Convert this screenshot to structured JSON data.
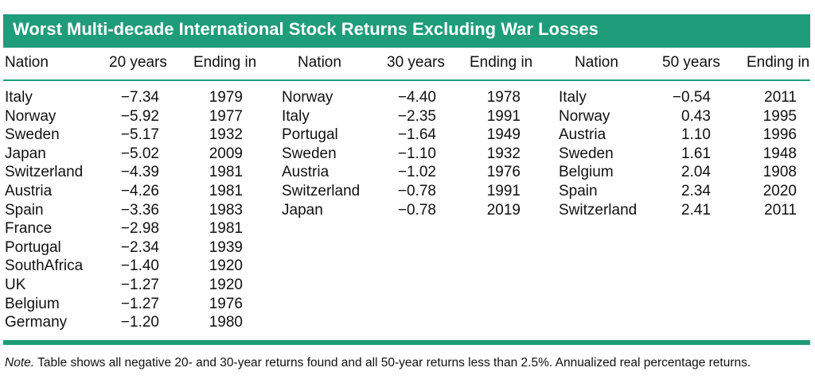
{
  "title": "Worst Multi-decade International Stock Returns Excluding War Losses",
  "headers": {
    "nation": "Nation",
    "years20": "20 years",
    "years30": "30 years",
    "years50": "50 years",
    "ending": "Ending in"
  },
  "table20": [
    {
      "nation": "Italy",
      "value": "−7.34",
      "ending": "1979"
    },
    {
      "nation": "Norway",
      "value": "−5.92",
      "ending": "1977"
    },
    {
      "nation": "Sweden",
      "value": "−5.17",
      "ending": "1932"
    },
    {
      "nation": "Japan",
      "value": "−5.02",
      "ending": "2009"
    },
    {
      "nation": "Switzerland",
      "value": "−4.39",
      "ending": "1981"
    },
    {
      "nation": "Austria",
      "value": "−4.26",
      "ending": "1981"
    },
    {
      "nation": "Spain",
      "value": "−3.36",
      "ending": "1983"
    },
    {
      "nation": "France",
      "value": "−2.98",
      "ending": "1981"
    },
    {
      "nation": "Portugal",
      "value": "−2.34",
      "ending": "1939"
    },
    {
      "nation": "SouthAfrica",
      "value": "−1.40",
      "ending": "1920"
    },
    {
      "nation": "UK",
      "value": "−1.27",
      "ending": "1920"
    },
    {
      "nation": "Belgium",
      "value": "−1.27",
      "ending": "1976"
    },
    {
      "nation": "Germany",
      "value": "−1.20",
      "ending": "1980"
    }
  ],
  "table30": [
    {
      "nation": "Norway",
      "value": "−4.40",
      "ending": "1978"
    },
    {
      "nation": "Italy",
      "value": "−2.35",
      "ending": "1991"
    },
    {
      "nation": "Portugal",
      "value": "−1.64",
      "ending": "1949"
    },
    {
      "nation": "Sweden",
      "value": "−1.10",
      "ending": "1932"
    },
    {
      "nation": "Austria",
      "value": "−1.02",
      "ending": "1976"
    },
    {
      "nation": "Switzerland",
      "value": "−0.78",
      "ending": "1991"
    },
    {
      "nation": "Japan",
      "value": "−0.78",
      "ending": "2019"
    }
  ],
  "table50": [
    {
      "nation": "Italy",
      "value": "−0.54",
      "ending": "2011"
    },
    {
      "nation": "Norway",
      "value": "0.43",
      "ending": "1995"
    },
    {
      "nation": "Austria",
      "value": "1.10",
      "ending": "1996"
    },
    {
      "nation": "Sweden",
      "value": "1.61",
      "ending": "1948"
    },
    {
      "nation": "Belgium",
      "value": "2.04",
      "ending": "1908"
    },
    {
      "nation": "Spain",
      "value": "2.34",
      "ending": "2020"
    },
    {
      "nation": "Switzerland",
      "value": "2.41",
      "ending": "2011"
    }
  ],
  "note": {
    "label": "Note.",
    "text": " Table shows all negative 20- and 30-year returns found and all 50-year returns less than 2.5%. Annualized real percentage returns."
  },
  "colors": {
    "accent": "#1f9c7a"
  }
}
